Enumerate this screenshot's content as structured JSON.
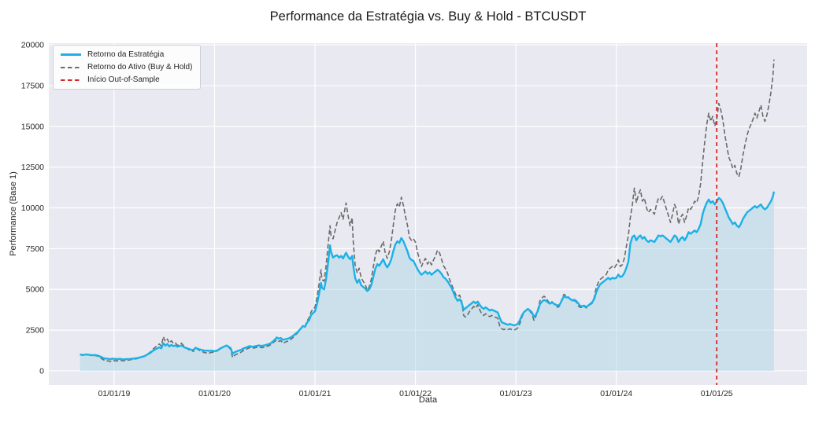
{
  "figure": {
    "kind": "matplotlib-style line chart"
  },
  "legend": {
    "items": [
      {
        "label": "Retorno da Estratégia",
        "style": "solid",
        "color": "#1bb1e7"
      },
      {
        "label": "Retorno do Ativo (Buy & Hold)",
        "style": "dashed",
        "color": "#6b6b6b"
      },
      {
        "label": "Início Out-of-Sample",
        "style": "dashed",
        "color": "#d62728"
      }
    ],
    "position": "upper left"
  },
  "chart_data": {
    "type": "line",
    "title": "Performance da Estratégia vs. Buy & Hold - BTCUSDT",
    "xlabel": "Data",
    "ylabel": "Performance (Base 1)",
    "grid": true,
    "background": "#e9e9f1",
    "grid_color": "#ffffff",
    "x_unit": "decimal_year",
    "xlim": [
      2018.35,
      2025.9
    ],
    "ylim": [
      -870,
      20100
    ],
    "xticks": [
      {
        "t": 2019,
        "label": "01/01/19"
      },
      {
        "t": 2020,
        "label": "01/01/20"
      },
      {
        "t": 2021,
        "label": "01/01/21"
      },
      {
        "t": 2022,
        "label": "01/01/22"
      },
      {
        "t": 2023,
        "label": "01/01/23"
      },
      {
        "t": 2024,
        "label": "01/01/24"
      },
      {
        "t": 2025,
        "label": "01/01/25"
      }
    ],
    "yticks": [
      0,
      2500,
      5000,
      7500,
      10000,
      12500,
      15000,
      17500,
      20000
    ],
    "annotations": [
      {
        "name": "Início Out-of-Sample",
        "type": "vline",
        "x": 2025.0,
        "color": "#d62728",
        "style": "dashed"
      }
    ],
    "x": [
      2018.66,
      2018.69,
      2018.72,
      2018.75,
      2018.78,
      2018.81,
      2018.84,
      2018.87,
      2018.89,
      2018.91,
      2018.94,
      2018.96,
      2018.98,
      2019.0,
      2019.03,
      2019.06,
      2019.09,
      2019.12,
      2019.15,
      2019.18,
      2019.21,
      2019.24,
      2019.27,
      2019.3,
      2019.33,
      2019.36,
      2019.39,
      2019.42,
      2019.45,
      2019.47,
      2019.49,
      2019.51,
      2019.53,
      2019.55,
      2019.57,
      2019.59,
      2019.61,
      2019.63,
      2019.65,
      2019.67,
      2019.69,
      2019.71,
      2019.73,
      2019.75,
      2019.77,
      2019.79,
      2019.81,
      2019.83,
      2019.85,
      2019.87,
      2019.89,
      2019.91,
      2019.93,
      2019.95,
      2019.97,
      2020.0,
      2020.03,
      2020.06,
      2020.09,
      2020.12,
      2020.14,
      2020.16,
      2020.18,
      2020.2,
      2020.23,
      2020.26,
      2020.29,
      2020.32,
      2020.35,
      2020.38,
      2020.41,
      2020.44,
      2020.47,
      2020.5,
      2020.53,
      2020.56,
      2020.59,
      2020.62,
      2020.64,
      2020.66,
      2020.68,
      2020.71,
      2020.74,
      2020.77,
      2020.8,
      2020.83,
      2020.86,
      2020.88,
      2020.9,
      2020.92,
      2020.94,
      2020.96,
      2020.98,
      2021.0,
      2021.02,
      2021.04,
      2021.06,
      2021.07,
      2021.09,
      2021.11,
      2021.13,
      2021.15,
      2021.16,
      2021.18,
      2021.2,
      2021.22,
      2021.24,
      2021.26,
      2021.28,
      2021.3,
      2021.31,
      2021.33,
      2021.35,
      2021.37,
      2021.38,
      2021.4,
      2021.42,
      2021.44,
      2021.46,
      2021.48,
      2021.5,
      2021.52,
      2021.54,
      2021.56,
      2021.58,
      2021.6,
      2021.62,
      2021.64,
      2021.66,
      2021.68,
      2021.7,
      2021.72,
      2021.74,
      2021.76,
      2021.78,
      2021.8,
      2021.82,
      2021.84,
      2021.86,
      2021.88,
      2021.9,
      2021.92,
      2021.94,
      2021.96,
      2021.98,
      2022.0,
      2022.02,
      2022.04,
      2022.06,
      2022.08,
      2022.1,
      2022.12,
      2022.14,
      2022.16,
      2022.18,
      2022.2,
      2022.22,
      2022.24,
      2022.26,
      2022.28,
      2022.3,
      2022.32,
      2022.34,
      2022.36,
      2022.38,
      2022.4,
      2022.42,
      2022.44,
      2022.46,
      2022.48,
      2022.5,
      2022.52,
      2022.54,
      2022.56,
      2022.58,
      2022.6,
      2022.62,
      2022.64,
      2022.66,
      2022.68,
      2022.7,
      2022.72,
      2022.74,
      2022.76,
      2022.78,
      2022.8,
      2022.82,
      2022.84,
      2022.86,
      2022.88,
      2022.9,
      2022.92,
      2022.94,
      2022.96,
      2022.98,
      2023.0,
      2023.02,
      2023.04,
      2023.06,
      2023.08,
      2023.1,
      2023.12,
      2023.14,
      2023.16,
      2023.18,
      2023.2,
      2023.22,
      2023.24,
      2023.26,
      2023.28,
      2023.3,
      2023.32,
      2023.34,
      2023.36,
      2023.38,
      2023.4,
      2023.42,
      2023.44,
      2023.46,
      2023.48,
      2023.5,
      2023.52,
      2023.54,
      2023.56,
      2023.58,
      2023.6,
      2023.62,
      2023.64,
      2023.66,
      2023.68,
      2023.7,
      2023.72,
      2023.74,
      2023.76,
      2023.78,
      2023.8,
      2023.82,
      2023.84,
      2023.86,
      2023.88,
      2023.9,
      2023.92,
      2023.94,
      2023.96,
      2023.98,
      2024.0,
      2024.02,
      2024.04,
      2024.06,
      2024.08,
      2024.1,
      2024.12,
      2024.14,
      2024.16,
      2024.18,
      2024.2,
      2024.22,
      2024.24,
      2024.26,
      2024.28,
      2024.3,
      2024.32,
      2024.34,
      2024.36,
      2024.38,
      2024.4,
      2024.42,
      2024.44,
      2024.46,
      2024.48,
      2024.5,
      2024.52,
      2024.54,
      2024.56,
      2024.58,
      2024.6,
      2024.62,
      2024.64,
      2024.66,
      2024.68,
      2024.7,
      2024.72,
      2024.74,
      2024.76,
      2024.78,
      2024.8,
      2024.82,
      2024.84,
      2024.86,
      2024.88,
      2024.9,
      2024.92,
      2024.94,
      2024.96,
      2024.98,
      2025.0,
      2025.02,
      2025.04,
      2025.06,
      2025.08,
      2025.1,
      2025.12,
      2025.14,
      2025.16,
      2025.18,
      2025.2,
      2025.22,
      2025.24,
      2025.26,
      2025.28,
      2025.3,
      2025.32,
      2025.34,
      2025.36,
      2025.38,
      2025.4,
      2025.42,
      2025.44,
      2025.46,
      2025.48,
      2025.5,
      2025.52,
      2025.54,
      2025.56,
      2025.57
    ],
    "series": [
      {
        "name": "Retorno da Estratégia",
        "color": "#1bb1e7",
        "style": "solid",
        "fill": true,
        "fill_color": "rgba(173,216,230,0.5)",
        "values": [
          1000,
          970,
          1010,
          990,
          960,
          970,
          940,
          860,
          790,
          760,
          740,
          720,
          750,
          740,
          720,
          740,
          700,
          720,
          730,
          750,
          770,
          800,
          850,
          900,
          1000,
          1100,
          1250,
          1350,
          1450,
          1380,
          1700,
          1550,
          1650,
          1500,
          1600,
          1520,
          1560,
          1480,
          1520,
          1560,
          1480,
          1420,
          1380,
          1330,
          1300,
          1280,
          1420,
          1360,
          1320,
          1290,
          1260,
          1230,
          1250,
          1220,
          1240,
          1210,
          1260,
          1380,
          1480,
          1560,
          1480,
          1400,
          1050,
          1150,
          1220,
          1280,
          1380,
          1450,
          1520,
          1480,
          1520,
          1560,
          1530,
          1570,
          1620,
          1700,
          1850,
          2050,
          1980,
          2020,
          1900,
          1950,
          2000,
          2100,
          2250,
          2400,
          2600,
          2750,
          2700,
          2950,
          3100,
          3400,
          3550,
          3650,
          4100,
          4700,
          5400,
          5100,
          5000,
          5600,
          6600,
          7700,
          7300,
          6950,
          7050,
          7100,
          6950,
          7050,
          6900,
          7150,
          7250,
          7000,
          6850,
          7050,
          6500,
          5700,
          5400,
          5600,
          5250,
          5150,
          5050,
          4900,
          5000,
          5250,
          5750,
          6250,
          6550,
          6450,
          6650,
          6850,
          6550,
          6350,
          6550,
          6850,
          7350,
          7750,
          7950,
          7850,
          8150,
          7950,
          7650,
          7350,
          6950,
          6800,
          6750,
          6500,
          6250,
          6050,
          5900,
          6000,
          6100,
          5950,
          6050,
          5900,
          6000,
          6100,
          6200,
          6100,
          5950,
          5750,
          5650,
          5500,
          5300,
          5100,
          4800,
          4500,
          4300,
          4400,
          4200,
          3750,
          3850,
          3950,
          4050,
          4150,
          4250,
          4150,
          4250,
          4050,
          3900,
          3800,
          3900,
          3800,
          3700,
          3760,
          3700,
          3640,
          3580,
          3250,
          2980,
          2930,
          2880,
          2830,
          2880,
          2830,
          2800,
          2820,
          2900,
          3100,
          3400,
          3600,
          3700,
          3800,
          3700,
          3600,
          3300,
          3450,
          3700,
          4100,
          4250,
          4350,
          4300,
          4200,
          4120,
          4200,
          4120,
          4050,
          4000,
          4100,
          4350,
          4600,
          4500,
          4520,
          4420,
          4320,
          4360,
          4300,
          4150,
          4000,
          3960,
          4010,
          3910,
          4010,
          4110,
          4210,
          4410,
          4810,
          5110,
          5310,
          5410,
          5510,
          5610,
          5710,
          5610,
          5710,
          5660,
          5710,
          5910,
          5760,
          5810,
          6010,
          6310,
          6710,
          7810,
          8210,
          8310,
          8010,
          8210,
          8310,
          8110,
          8210,
          8010,
          7910,
          8010,
          7960,
          7910,
          8110,
          8310,
          8260,
          8310,
          8210,
          8110,
          8010,
          7910,
          8110,
          8310,
          8210,
          7910,
          8110,
          8210,
          8010,
          8210,
          8510,
          8410,
          8510,
          8610,
          8510,
          8710,
          9010,
          9610,
          10010,
          10310,
          10510,
          10310,
          10410,
          10210,
          10410,
          10610,
          10510,
          10310,
          10010,
          9710,
          9410,
          9210,
          9010,
          9110,
          8910,
          8810,
          9010,
          9310,
          9510,
          9710,
          9810,
          9910,
          10010,
          10110,
          10010,
          10110,
          10210,
          10010,
          9910,
          10010,
          10210,
          10410,
          10710,
          11000
        ]
      },
      {
        "name": "Retorno do Ativo (Buy & Hold)",
        "color": "#6b6b6b",
        "style": "dashed",
        "fill": false,
        "values": [
          1000,
          1000,
          960,
          980,
          930,
          950,
          890,
          780,
          690,
          640,
          610,
          580,
          640,
          630,
          610,
          640,
          620,
          650,
          670,
          700,
          730,
          770,
          830,
          900,
          1020,
          1150,
          1350,
          1500,
          1650,
          1520,
          2100,
          1800,
          1950,
          1700,
          1850,
          1680,
          1720,
          1560,
          1620,
          1700,
          1560,
          1460,
          1350,
          1280,
          1230,
          1200,
          1440,
          1330,
          1260,
          1200,
          1150,
          1100,
          1140,
          1100,
          1130,
          1160,
          1230,
          1360,
          1470,
          1560,
          1450,
          1330,
          820,
          960,
          1050,
          1130,
          1260,
          1340,
          1430,
          1380,
          1430,
          1470,
          1420,
          1450,
          1520,
          1610,
          1760,
          1900,
          1810,
          1860,
          1700,
          1780,
          1850,
          1990,
          2160,
          2350,
          2620,
          2800,
          2720,
          3050,
          3250,
          3600,
          3800,
          3900,
          4500,
          5300,
          6200,
          5600,
          5500,
          6400,
          7700,
          8900,
          8300,
          8100,
          8600,
          9100,
          9400,
          9700,
          9300,
          10000,
          10300,
          9500,
          8900,
          9400,
          8000,
          6500,
          6000,
          6300,
          5700,
          5500,
          5300,
          4950,
          5150,
          5600,
          6350,
          7050,
          7500,
          7300,
          7650,
          7950,
          7200,
          6900,
          7300,
          7950,
          8950,
          9850,
          10250,
          10050,
          10650,
          10150,
          9500,
          8950,
          8200,
          8000,
          8100,
          7900,
          7300,
          6850,
          6400,
          6700,
          6900,
          6550,
          6750,
          6500,
          6800,
          7050,
          7400,
          7250,
          6850,
          6450,
          6250,
          6000,
          5600,
          5300,
          5000,
          4700,
          4550,
          4650,
          4300,
          3400,
          3300,
          3450,
          3650,
          3800,
          3950,
          3850,
          4050,
          3750,
          3500,
          3400,
          3500,
          3400,
          3330,
          3400,
          3330,
          3280,
          3230,
          2750,
          2580,
          2530,
          2580,
          2530,
          2580,
          2530,
          2500,
          2550,
          2650,
          2900,
          3300,
          3600,
          3720,
          3820,
          3650,
          3500,
          3100,
          3350,
          3800,
          4300,
          4480,
          4580,
          4480,
          4280,
          4150,
          4250,
          4080,
          3980,
          3900,
          4020,
          4450,
          4700,
          4600,
          4550,
          4420,
          4320,
          4300,
          4250,
          4000,
          3900,
          3900,
          3960,
          3860,
          4010,
          4060,
          4160,
          4510,
          5110,
          5410,
          5610,
          5710,
          5810,
          5910,
          6210,
          6310,
          6410,
          6310,
          6510,
          6810,
          6410,
          6510,
          6910,
          7610,
          8310,
          9410,
          10210,
          11210,
          10310,
          10810,
          11110,
          10410,
          10610,
          10010,
          9710,
          9910,
          9760,
          9610,
          10210,
          10610,
          10510,
          10710,
          10310,
          9910,
          9510,
          9110,
          9610,
          10210,
          9910,
          9010,
          9410,
          9610,
          9110,
          9510,
          10010,
          9910,
          10110,
          10410,
          10310,
          10710,
          11510,
          12810,
          14010,
          15110,
          15810,
          15310,
          15610,
          15010,
          15410,
          16410,
          16010,
          15410,
          14510,
          13810,
          13110,
          12810,
          12410,
          12610,
          12110,
          11910,
          12410,
          13210,
          13810,
          14410,
          14810,
          15110,
          15410,
          15810,
          15510,
          15910,
          16310,
          15610,
          15310,
          15710,
          16310,
          17110,
          18110,
          19100
        ]
      }
    ]
  }
}
